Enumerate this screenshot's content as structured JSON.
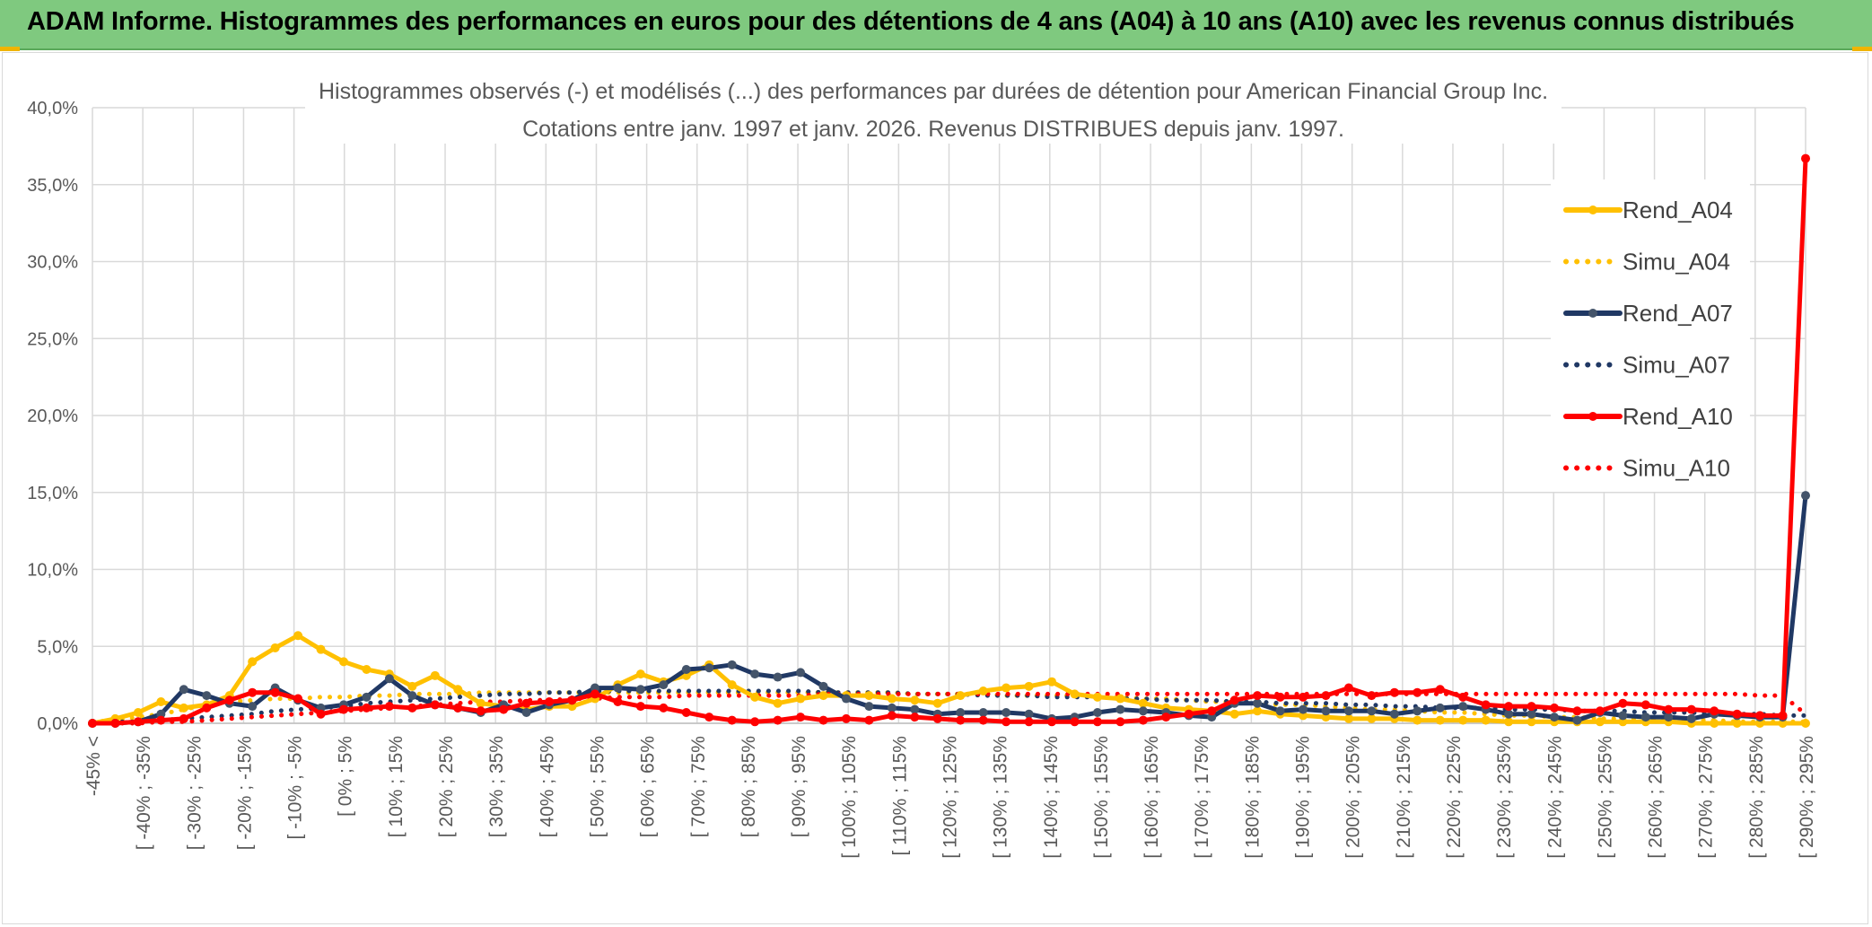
{
  "header": {
    "title": "ADAM Informe. Histogrammes des performances en euros pour des détentions de 4 ans (A04) à 10 ans (A10) avec les revenus connus distribués"
  },
  "chart_data": {
    "type": "line",
    "title_lines": [
      "Histogrammes observés (-) et modélisés (...) des performances par durées de détention pour American Financial Group Inc.",
      "Cotations entre janv. 1997 et janv. 2026. Revenus DISTRIBUES depuis janv. 1997."
    ],
    "xlabel": "",
    "ylabel": "",
    "ylim": [
      0,
      40
    ],
    "y_ticks": [
      "0,0%",
      "5,0%",
      "10,0%",
      "15,0%",
      "20,0%",
      "25,0%",
      "30,0%",
      "35,0%",
      "40,0%"
    ],
    "x_tick_labels": [
      "-45% <",
      "[ -40% ; -35%",
      "[ -30% ; -25%",
      "[ -20% ; -15%",
      "[ -10% ; -5%",
      "[ 0% ; 5%",
      "[ 10% ; 15%",
      "[ 20% ; 25%",
      "[ 30% ; 35%",
      "[ 40% ; 45%",
      "[ 50% ; 55%",
      "[ 60% ; 65%",
      "[ 70% ; 75%",
      "[ 80% ; 85%",
      "[ 90% ; 95%",
      "[ 100% ; 105%",
      "[ 110% ; 115%",
      "[ 120% ; 125%",
      "[ 130% ; 135%",
      "[ 140% ; 145%",
      "[ 150% ; 155%",
      "[ 160% ; 165%",
      "[ 170% ; 175%",
      "[ 180% ; 185%",
      "[ 190% ; 195%",
      "[ 200% ; 205%",
      "[ 210% ; 215%",
      "[ 220% ; 225%",
      "[ 230% ; 235%",
      "[ 240% ; 245%",
      "[ 250% ; 255%",
      "[ 260% ; 265%",
      "[ 270% ; 275%",
      "[ 280% ; 285%",
      "[ 290% ; 295%"
    ],
    "grid": true,
    "legend_position": "right",
    "series": [
      {
        "name": "Rend_A04",
        "color": "#ffc000",
        "style": "solid",
        "marker": true,
        "values": [
          0.0,
          0.3,
          0.7,
          1.4,
          1.0,
          1.2,
          1.8,
          4.0,
          4.9,
          5.7,
          4.8,
          4.0,
          3.5,
          3.2,
          2.4,
          3.1,
          2.2,
          1.3,
          1.1,
          0.9,
          1.1,
          1.1,
          1.6,
          2.5,
          3.2,
          2.7,
          3.1,
          3.8,
          2.5,
          1.7,
          1.3,
          1.6,
          1.8,
          1.8,
          1.8,
          1.6,
          1.5,
          1.3,
          1.8,
          2.1,
          2.3,
          2.4,
          2.7,
          1.9,
          1.7,
          1.6,
          1.3,
          1.0,
          0.9,
          0.8,
          0.6,
          0.8,
          0.6,
          0.5,
          0.4,
          0.3,
          0.3,
          0.3,
          0.2,
          0.2,
          0.2,
          0.2,
          0.1,
          0.1,
          0.1,
          0.1,
          0.1,
          0.1,
          0.1,
          0.1,
          0.0,
          0.0,
          0.0,
          0.0,
          0.0,
          0.0
        ]
      },
      {
        "name": "Simu_A04",
        "color": "#ffc000",
        "style": "dotted",
        "marker": false,
        "values": [
          0.1,
          0.2,
          0.4,
          0.6,
          0.9,
          1.2,
          1.4,
          1.5,
          1.6,
          1.6,
          1.7,
          1.7,
          1.8,
          1.8,
          1.9,
          1.9,
          1.9,
          2.0,
          2.0,
          2.0,
          2.0,
          2.0,
          2.0,
          2.0,
          2.0,
          2.0,
          2.0,
          2.0,
          2.0,
          2.0,
          2.0,
          2.0,
          2.0,
          2.0,
          2.0,
          2.0,
          1.9,
          1.9,
          1.9,
          1.9,
          1.8,
          1.8,
          1.8,
          1.8,
          1.7,
          1.7,
          1.6,
          1.6,
          1.5,
          1.4,
          1.4,
          1.3,
          1.2,
          1.2,
          1.1,
          1.0,
          0.9,
          0.9,
          0.8,
          0.7,
          0.7,
          0.6,
          0.5,
          0.5,
          0.4,
          0.4,
          0.3,
          0.3,
          0.3,
          0.2,
          0.2,
          0.2,
          0.1,
          0.1,
          0.1,
          0.1
        ]
      },
      {
        "name": "Rend_A07",
        "color": "#203864",
        "style": "solid",
        "marker": true,
        "values": [
          0.0,
          0.0,
          0.1,
          0.6,
          2.2,
          1.8,
          1.3,
          1.1,
          2.3,
          1.5,
          1.0,
          1.2,
          1.7,
          2.9,
          1.8,
          1.2,
          1.0,
          0.7,
          1.2,
          0.7,
          1.2,
          1.5,
          2.3,
          2.3,
          2.2,
          2.5,
          3.5,
          3.6,
          3.8,
          3.2,
          3.0,
          3.3,
          2.4,
          1.6,
          1.1,
          1.0,
          0.9,
          0.6,
          0.7,
          0.7,
          0.7,
          0.6,
          0.3,
          0.4,
          0.7,
          0.9,
          0.8,
          0.7,
          0.5,
          0.4,
          1.3,
          1.3,
          0.8,
          0.9,
          0.8,
          0.8,
          0.8,
          0.6,
          0.8,
          1.0,
          1.1,
          0.9,
          0.6,
          0.6,
          0.4,
          0.2,
          0.7,
          0.5,
          0.4,
          0.4,
          0.3,
          0.6,
          0.5,
          0.4,
          0.4,
          14.8
        ]
      },
      {
        "name": "Simu_A07",
        "color": "#203864",
        "style": "dotted",
        "marker": false,
        "values": [
          0.0,
          0.1,
          0.1,
          0.2,
          0.3,
          0.4,
          0.5,
          0.6,
          0.8,
          0.9,
          1.0,
          1.1,
          1.3,
          1.4,
          1.5,
          1.6,
          1.7,
          1.8,
          1.9,
          1.9,
          2.0,
          2.0,
          2.1,
          2.1,
          2.1,
          2.1,
          2.1,
          2.1,
          2.1,
          2.1,
          2.1,
          2.1,
          2.0,
          2.0,
          2.0,
          2.0,
          1.9,
          1.9,
          1.9,
          1.8,
          1.8,
          1.8,
          1.7,
          1.7,
          1.7,
          1.6,
          1.6,
          1.5,
          1.5,
          1.5,
          1.4,
          1.4,
          1.3,
          1.3,
          1.3,
          1.2,
          1.2,
          1.1,
          1.1,
          1.0,
          1.0,
          1.0,
          0.9,
          0.9,
          0.9,
          0.8,
          0.8,
          0.8,
          0.7,
          0.7,
          0.7,
          0.6,
          0.6,
          0.6,
          0.5,
          0.5
        ]
      },
      {
        "name": "Rend_A10",
        "color": "#ff0000",
        "style": "solid",
        "marker": true,
        "values": [
          0.0,
          0.0,
          0.1,
          0.2,
          0.3,
          1.0,
          1.5,
          2.0,
          2.0,
          1.6,
          0.6,
          0.9,
          1.0,
          1.1,
          1.0,
          1.2,
          1.0,
          0.8,
          0.9,
          1.3,
          1.4,
          1.5,
          1.9,
          1.4,
          1.1,
          1.0,
          0.7,
          0.4,
          0.2,
          0.1,
          0.2,
          0.4,
          0.2,
          0.3,
          0.2,
          0.5,
          0.4,
          0.3,
          0.2,
          0.2,
          0.1,
          0.1,
          0.1,
          0.1,
          0.1,
          0.1,
          0.2,
          0.4,
          0.6,
          0.8,
          1.5,
          1.8,
          1.7,
          1.7,
          1.8,
          2.3,
          1.8,
          2.0,
          2.0,
          2.2,
          1.7,
          1.2,
          1.1,
          1.1,
          1.0,
          0.8,
          0.8,
          1.3,
          1.2,
          0.9,
          0.9,
          0.8,
          0.6,
          0.5,
          0.5,
          36.7
        ]
      },
      {
        "name": "Simu_A10",
        "color": "#ff0000",
        "style": "dotted",
        "marker": false,
        "values": [
          0.0,
          0.0,
          0.0,
          0.1,
          0.1,
          0.2,
          0.3,
          0.4,
          0.5,
          0.6,
          0.7,
          0.8,
          0.9,
          1.0,
          1.1,
          1.2,
          1.3,
          1.4,
          1.4,
          1.5,
          1.5,
          1.6,
          1.6,
          1.7,
          1.7,
          1.7,
          1.8,
          1.8,
          1.8,
          1.8,
          1.8,
          1.8,
          1.9,
          1.9,
          1.9,
          1.9,
          1.9,
          1.9,
          1.9,
          1.9,
          1.9,
          1.9,
          1.9,
          1.9,
          1.9,
          1.9,
          1.9,
          1.9,
          1.9,
          1.9,
          1.9,
          1.9,
          1.9,
          1.9,
          1.9,
          1.9,
          1.9,
          1.9,
          1.9,
          1.9,
          1.9,
          1.9,
          1.9,
          1.9,
          1.9,
          1.9,
          1.9,
          1.9,
          1.9,
          1.9,
          1.9,
          1.9,
          1.9,
          1.8,
          1.8,
          0.6
        ]
      }
    ]
  }
}
